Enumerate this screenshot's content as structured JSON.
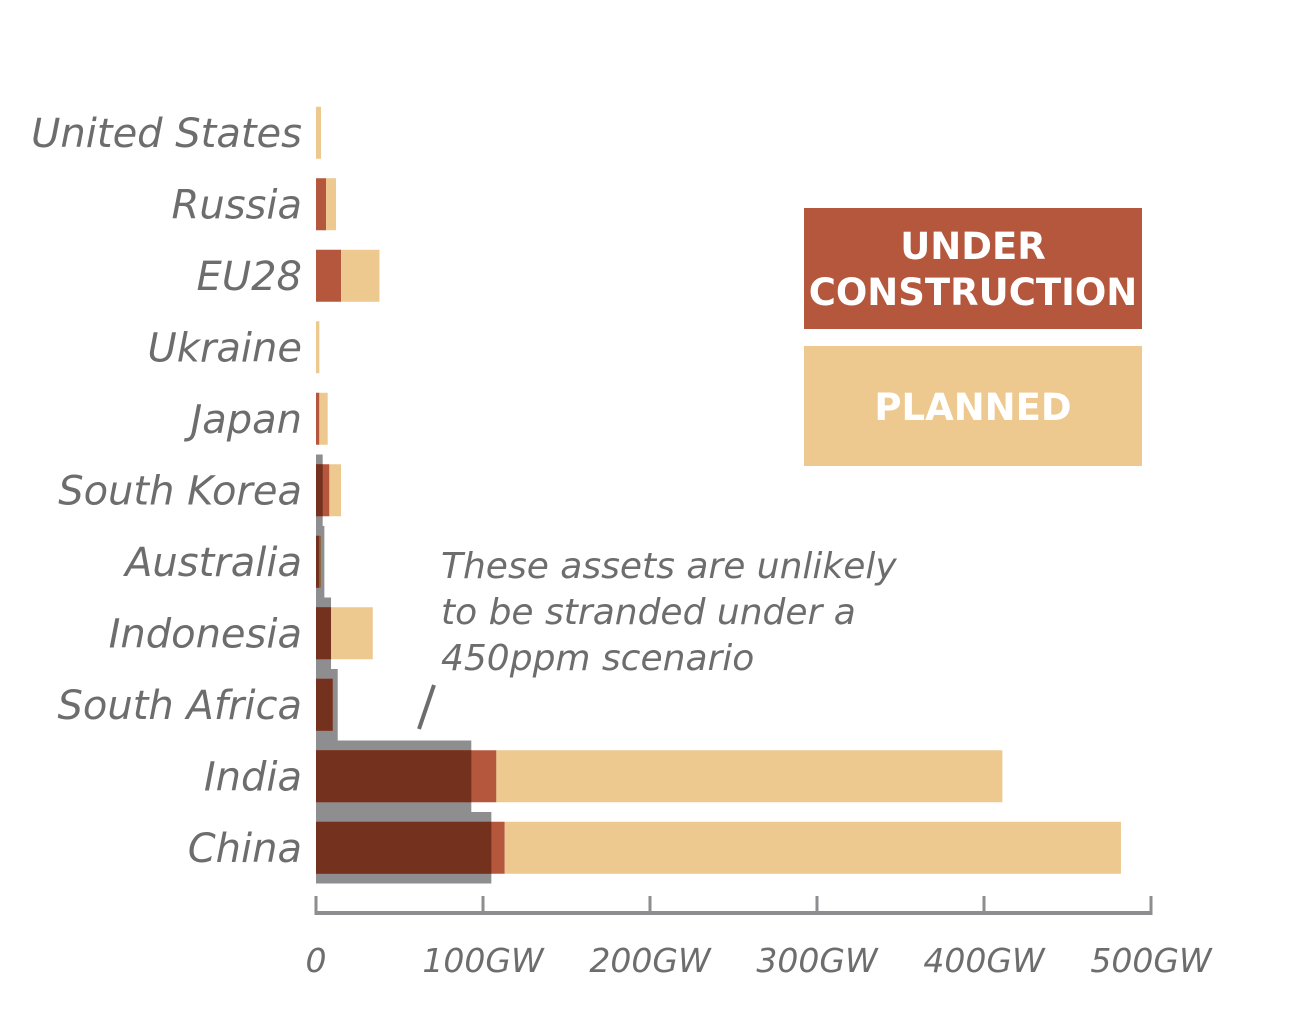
{
  "chart_data": {
    "type": "bar",
    "orientation": "horizontal",
    "stacked": true,
    "unit": "GW",
    "categories": [
      "United States",
      "Russia",
      "EU28",
      "Ukraine",
      "Japan",
      "South Korea",
      "Australia",
      "Indonesia",
      "South Africa",
      "India",
      "China"
    ],
    "series": [
      {
        "name": "UNDER CONSTRUCTION",
        "color": "#b5573c",
        "values": [
          0,
          6,
          15,
          0,
          2,
          8,
          2,
          9,
          10,
          108,
          113
        ]
      },
      {
        "name": "PLANNED",
        "color": "#edc98f",
        "values": [
          3,
          6,
          23,
          2,
          5,
          7,
          1,
          25,
          0,
          303,
          369
        ]
      }
    ],
    "unlikely_stranded": {
      "color": "#8e8e90",
      "values": [
        0,
        0,
        0,
        0,
        0,
        4,
        5,
        9,
        13,
        93,
        105
      ]
    },
    "overlap_color": "#73311e",
    "xlim": [
      0,
      500
    ],
    "xticks": [
      0,
      100,
      200,
      300,
      400,
      500
    ],
    "xtick_labels": [
      "0",
      "100GW",
      "200GW",
      "300GW",
      "400GW",
      "500GW"
    ],
    "annotation": {
      "lines": [
        "These assets are unlikely",
        "to be stranded under a",
        "450ppm scenario"
      ]
    },
    "legend": {
      "position": "right",
      "under_lines": [
        "UNDER",
        "CONSTRUCTION"
      ],
      "planned_label": "PLANNED"
    }
  }
}
